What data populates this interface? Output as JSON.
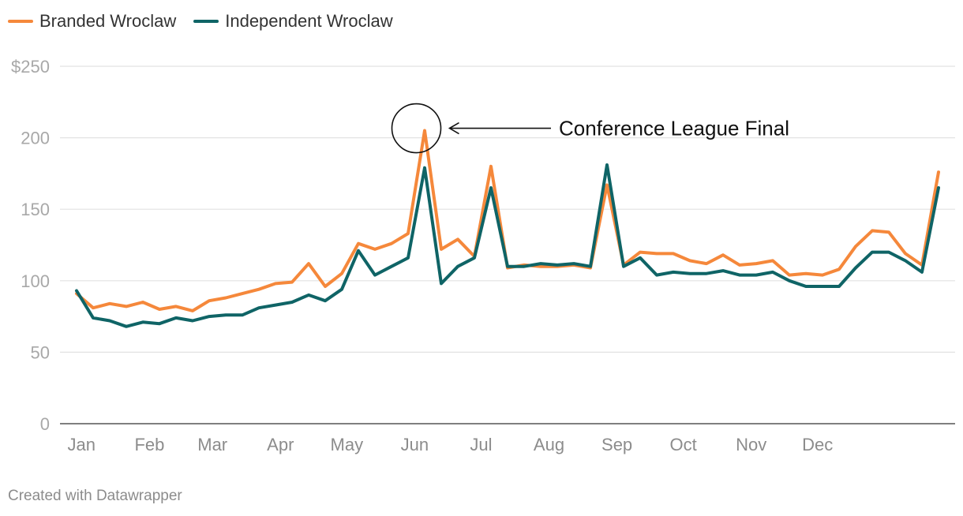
{
  "legend": [
    {
      "label": "Branded Wroclaw",
      "color": "#f5883b"
    },
    {
      "label": "Independent Wroclaw",
      "color": "#0f6466"
    }
  ],
  "footer": "Created with Datawrapper",
  "annotation": {
    "text": "Conference League Final",
    "x": 21.5,
    "y": 205
  },
  "chart_data": {
    "type": "line",
    "x_unit": "week of year",
    "xlim": [
      1,
      53
    ],
    "ylim": [
      0,
      250
    ],
    "y_ticks": [
      {
        "value": 0,
        "label": "0"
      },
      {
        "value": 50,
        "label": "50"
      },
      {
        "value": 100,
        "label": "100"
      },
      {
        "value": 150,
        "label": "150"
      },
      {
        "value": 200,
        "label": "200"
      },
      {
        "value": 250,
        "label": "$250"
      }
    ],
    "x_ticks": [
      {
        "value": 1.3,
        "label": "Jan"
      },
      {
        "value": 5.4,
        "label": "Feb"
      },
      {
        "value": 9.2,
        "label": "Mar"
      },
      {
        "value": 13.3,
        "label": "Apr"
      },
      {
        "value": 17.3,
        "label": "May"
      },
      {
        "value": 21.4,
        "label": "Jun"
      },
      {
        "value": 25.4,
        "label": "Jul"
      },
      {
        "value": 29.5,
        "label": "Aug"
      },
      {
        "value": 33.6,
        "label": "Sep"
      },
      {
        "value": 37.6,
        "label": "Oct"
      },
      {
        "value": 41.7,
        "label": "Nov"
      },
      {
        "value": 45.7,
        "label": "Dec"
      }
    ],
    "grid": true,
    "legend_position": "top-left",
    "x": [
      1,
      2,
      3,
      4,
      5,
      6,
      7,
      8,
      9,
      10,
      11,
      12,
      13,
      14,
      15,
      16,
      17,
      18,
      19,
      20,
      21,
      22,
      23,
      24,
      25,
      26,
      27,
      28,
      29,
      30,
      31,
      32,
      33,
      34,
      35,
      36,
      37,
      38,
      39,
      40,
      41,
      42,
      43,
      44,
      45,
      46,
      47,
      48,
      49,
      50,
      51,
      52,
      53
    ],
    "series": [
      {
        "name": "Branded Wroclaw",
        "color": "#f5883b",
        "values": [
          91,
          81,
          84,
          82,
          85,
          80,
          82,
          79,
          86,
          88,
          91,
          94,
          98,
          99,
          112,
          96,
          105,
          126,
          122,
          126,
          133,
          205,
          122,
          129,
          117,
          180,
          109,
          111,
          110,
          110,
          111,
          109,
          167,
          111,
          120,
          119,
          119,
          114,
          112,
          118,
          111,
          112,
          114,
          104,
          105,
          104,
          108,
          124,
          135,
          134,
          119,
          111,
          176
        ]
      },
      {
        "name": "Independent Wroclaw",
        "color": "#0f6466",
        "values": [
          93,
          74,
          72,
          68,
          71,
          70,
          74,
          72,
          75,
          76,
          76,
          81,
          83,
          85,
          90,
          86,
          94,
          121,
          104,
          110,
          116,
          179,
          98,
          110,
          116,
          165,
          110,
          110,
          112,
          111,
          112,
          110,
          181,
          110,
          116,
          104,
          106,
          105,
          105,
          107,
          104,
          104,
          106,
          100,
          96,
          96,
          96,
          109,
          120,
          120,
          114,
          106,
          165
        ]
      }
    ]
  }
}
